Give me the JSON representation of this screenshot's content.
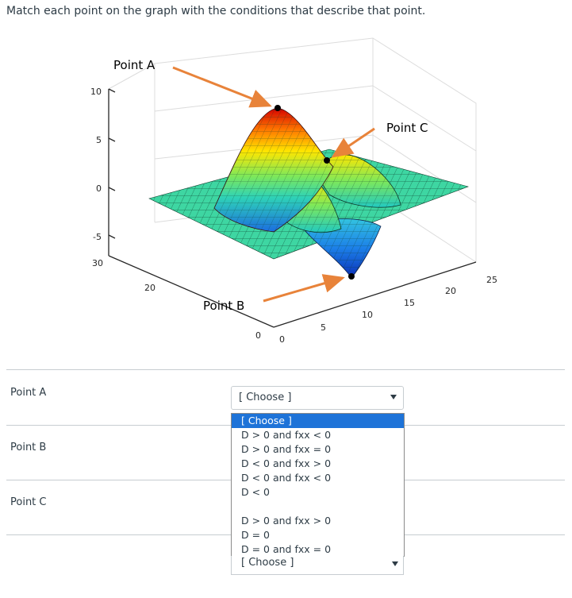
{
  "question": {
    "prompt": "Match each point on the graph with the conditions that describe that point."
  },
  "graph": {
    "annotations": {
      "point_a": "Point A",
      "point_b": "Point B",
      "point_c": "Point C"
    },
    "z_ticks": [
      "10",
      "5",
      "0",
      "-5"
    ],
    "x_ticks": [
      "30",
      "20",
      "0"
    ],
    "y_ticks": [
      "0",
      "5",
      "10",
      "15",
      "20",
      "25"
    ],
    "arrow_color": "#e8833a"
  },
  "rows": [
    {
      "label": "Point A",
      "selected": "[ Choose ]"
    },
    {
      "label": "Point B"
    },
    {
      "label": "Point C"
    }
  ],
  "dropdown": {
    "options": [
      "[ Choose ]",
      "D > 0 and fxx < 0",
      "D > 0 and fxx = 0",
      "D < 0 and fxx > 0",
      "D < 0 and fxx < 0",
      "D < 0",
      "",
      "D > 0 and fxx > 0",
      "D = 0",
      "D = 0 and fxx = 0"
    ],
    "highlighted_index": 0,
    "bottom_value": "[ Choose ]"
  }
}
